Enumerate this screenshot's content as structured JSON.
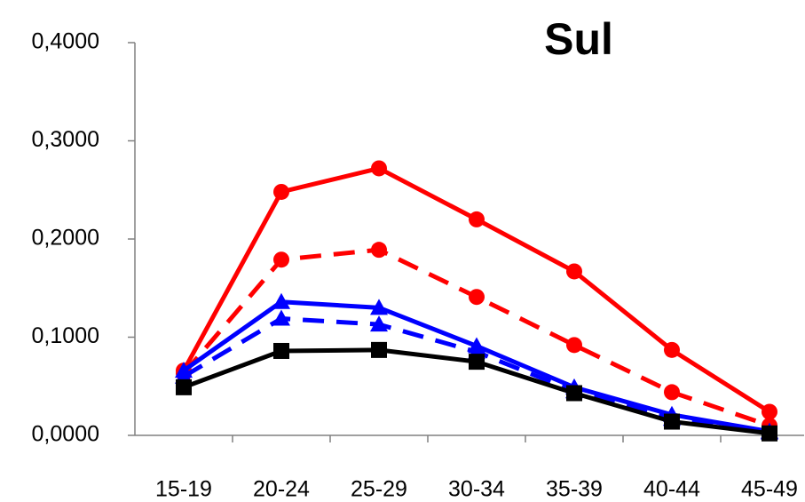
{
  "chart_data": {
    "type": "line",
    "title": "Sul",
    "categories": [
      "15-19",
      "20-24",
      "25-29",
      "30-34",
      "35-39",
      "40-44",
      "45-49"
    ],
    "series": [
      {
        "color": "#ff0000",
        "dash": false,
        "marker": "circle",
        "values": [
          0.066,
          0.248,
          0.272,
          0.22,
          0.167,
          0.087,
          0.024
        ]
      },
      {
        "color": "#ff0000",
        "dash": true,
        "marker": "circle",
        "values": [
          0.063,
          0.179,
          0.189,
          0.141,
          0.092,
          0.044,
          0.01
        ]
      },
      {
        "color": "#0000ff",
        "dash": false,
        "marker": "triangle",
        "values": [
          0.066,
          0.136,
          0.13,
          0.091,
          0.049,
          0.021,
          0.004
        ]
      },
      {
        "color": "#0000ff",
        "dash": true,
        "marker": "triangle",
        "values": [
          0.06,
          0.119,
          0.113,
          0.085,
          0.045,
          0.017,
          0.003
        ]
      },
      {
        "color": "#000000",
        "dash": false,
        "marker": "square",
        "values": [
          0.049,
          0.086,
          0.087,
          0.075,
          0.043,
          0.014,
          0.002
        ]
      }
    ],
    "ylim": [
      0,
      0.4
    ],
    "yticks": [
      {
        "value": 0,
        "label": "0,0000"
      },
      {
        "value": 0.1,
        "label": "0,1000"
      },
      {
        "value": 0.2,
        "label": "0,2000"
      },
      {
        "value": 0.3,
        "label": "0,3000"
      },
      {
        "value": 0.4,
        "label": "0,4000"
      }
    ],
    "grid": false
  }
}
